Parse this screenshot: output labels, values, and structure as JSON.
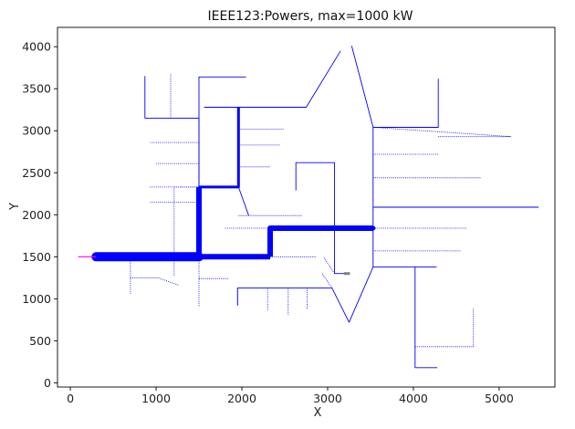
{
  "chart_data": {
    "type": "line",
    "title": "IEEE123:Powers, max=1000 kW",
    "xlabel": "X",
    "ylabel": "Y",
    "xlim": [
      -150,
      5650
    ],
    "ylim": [
      -50,
      4230
    ],
    "xticks": [
      0,
      1000,
      2000,
      3000,
      4000,
      5000
    ],
    "yticks": [
      0,
      500,
      1000,
      1500,
      2000,
      2500,
      3000,
      3500,
      4000
    ],
    "grid": false,
    "legend": "none",
    "colors": {
      "line": "#0000ff",
      "source": "#ff00ff",
      "device": "#808080"
    },
    "series": [
      {
        "level": "heavy",
        "points": [
          [
            300,
            1500
          ],
          [
            1500,
            1500
          ]
        ]
      },
      {
        "level": "large",
        "points": [
          [
            1500,
            1500
          ],
          [
            2330,
            1500
          ]
        ]
      },
      {
        "level": "large",
        "points": [
          [
            2330,
            1500
          ],
          [
            2330,
            1840
          ],
          [
            3530,
            1840
          ]
        ]
      },
      {
        "level": "large",
        "points": [
          [
            1500,
            1500
          ],
          [
            1500,
            2330
          ]
        ]
      },
      {
        "level": "medium",
        "points": [
          [
            1500,
            2330
          ],
          [
            1960,
            2330
          ],
          [
            1960,
            3280
          ]
        ]
      },
      {
        "level": "thin",
        "points": [
          [
            1960,
            3280
          ],
          [
            2750,
            3280
          ],
          [
            3150,
            3950
          ]
        ]
      },
      {
        "level": "thin",
        "points": [
          [
            1960,
            3280
          ],
          [
            1560,
            3280
          ]
        ]
      },
      {
        "level": "thin",
        "points": [
          [
            1500,
            2330
          ],
          [
            1500,
            3150
          ],
          [
            870,
            3150
          ],
          [
            870,
            3650
          ]
        ]
      },
      {
        "level": "thin",
        "points": [
          [
            1500,
            2330
          ],
          [
            1500,
            3640
          ],
          [
            2050,
            3640
          ]
        ]
      },
      {
        "level": "thin",
        "points": [
          [
            3530,
            1840
          ],
          [
            3530,
            3040
          ],
          [
            3280,
            4010
          ]
        ]
      },
      {
        "level": "thin",
        "points": [
          [
            3530,
            1840
          ],
          [
            3530,
            1380
          ],
          [
            3250,
            720
          ],
          [
            3050,
            1130
          ],
          [
            1950,
            1130
          ],
          [
            1950,
            920
          ]
        ]
      },
      {
        "level": "thin",
        "points": [
          [
            3530,
            1380
          ],
          [
            4020,
            1380
          ],
          [
            4020,
            180
          ],
          [
            4280,
            180
          ]
        ]
      },
      {
        "level": "thin",
        "points": [
          [
            3080,
            1840
          ],
          [
            3080,
            2620
          ],
          [
            2630,
            2620
          ],
          [
            2630,
            2290
          ]
        ]
      },
      {
        "level": "thin",
        "points": [
          [
            3530,
            3040
          ],
          [
            4290,
            3040
          ],
          [
            4290,
            3620
          ]
        ]
      },
      {
        "level": "thin",
        "points": [
          [
            3530,
            2090
          ],
          [
            5460,
            2090
          ]
        ]
      },
      {
        "level": "thin",
        "points": [
          [
            4020,
            1380
          ],
          [
            4270,
            1380
          ]
        ]
      },
      {
        "level": "thin",
        "points": [
          [
            3080,
            1840
          ],
          [
            3080,
            1300
          ],
          [
            3230,
            1300
          ]
        ]
      },
      {
        "level": "thin",
        "points": [
          [
            1960,
            2330
          ],
          [
            2080,
            1990
          ]
        ]
      },
      {
        "level": "source",
        "points": [
          [
            90,
            1500
          ],
          [
            300,
            1500
          ]
        ]
      },
      {
        "level": "device",
        "points": [
          [
            3190,
            1300
          ],
          [
            3260,
            1300
          ]
        ]
      }
    ],
    "laterals": [
      [
        [
          1500,
          3150
        ],
        [
          1170,
          3150
        ],
        [
          1170,
          3680
        ]
      ],
      [
        [
          1500,
          2860
        ],
        [
          930,
          2860
        ]
      ],
      [
        [
          1500,
          2610
        ],
        [
          990,
          2610
        ]
      ],
      [
        [
          1500,
          2330
        ],
        [
          920,
          2330
        ]
      ],
      [
        [
          1500,
          2150
        ],
        [
          930,
          2150
        ]
      ],
      [
        [
          1500,
          2330
        ],
        [
          1210,
          2330
        ],
        [
          1210,
          1270
        ]
      ],
      [
        [
          1960,
          3020
        ],
        [
          2490,
          3020
        ]
      ],
      [
        [
          1960,
          2830
        ],
        [
          2440,
          2830
        ]
      ],
      [
        [
          1960,
          2570
        ],
        [
          2330,
          2570
        ]
      ],
      [
        [
          1960,
          3280
        ],
        [
          1960,
          2980
        ]
      ],
      [
        [
          1960,
          1990
        ],
        [
          2700,
          1990
        ]
      ],
      [
        [
          2330,
          1840
        ],
        [
          1800,
          1840
        ]
      ],
      [
        [
          2330,
          1500
        ],
        [
          2870,
          1500
        ]
      ],
      [
        [
          1500,
          1500
        ],
        [
          1500,
          900
        ]
      ],
      [
        [
          1500,
          1240
        ],
        [
          1840,
          1240
        ]
      ],
      [
        [
          700,
          1500
        ],
        [
          700,
          1060
        ]
      ],
      [
        [
          700,
          1250
        ],
        [
          1020,
          1250
        ],
        [
          1270,
          1160
        ]
      ],
      [
        [
          1950,
          1130
        ],
        [
          1950,
          920
        ]
      ],
      [
        [
          2300,
          1130
        ],
        [
          2300,
          860
        ]
      ],
      [
        [
          2540,
          1130
        ],
        [
          2540,
          810
        ]
      ],
      [
        [
          2760,
          1130
        ],
        [
          2760,
          880
        ]
      ],
      [
        [
          3530,
          3040
        ],
        [
          5140,
          2930
        ]
      ],
      [
        [
          3530,
          2720
        ],
        [
          4300,
          2720
        ]
      ],
      [
        [
          3530,
          2440
        ],
        [
          4790,
          2440
        ]
      ],
      [
        [
          3530,
          1840
        ],
        [
          4630,
          1840
        ]
      ],
      [
        [
          3530,
          1570
        ],
        [
          4560,
          1570
        ]
      ],
      [
        [
          4020,
          430
        ],
        [
          4700,
          430
        ],
        [
          4700,
          890
        ]
      ],
      [
        [
          4290,
          2930
        ],
        [
          5140,
          2930
        ]
      ],
      [
        [
          3080,
          1300
        ],
        [
          2950,
          1500
        ]
      ],
      [
        [
          3050,
          1130
        ],
        [
          2930,
          1310
        ]
      ]
    ]
  }
}
